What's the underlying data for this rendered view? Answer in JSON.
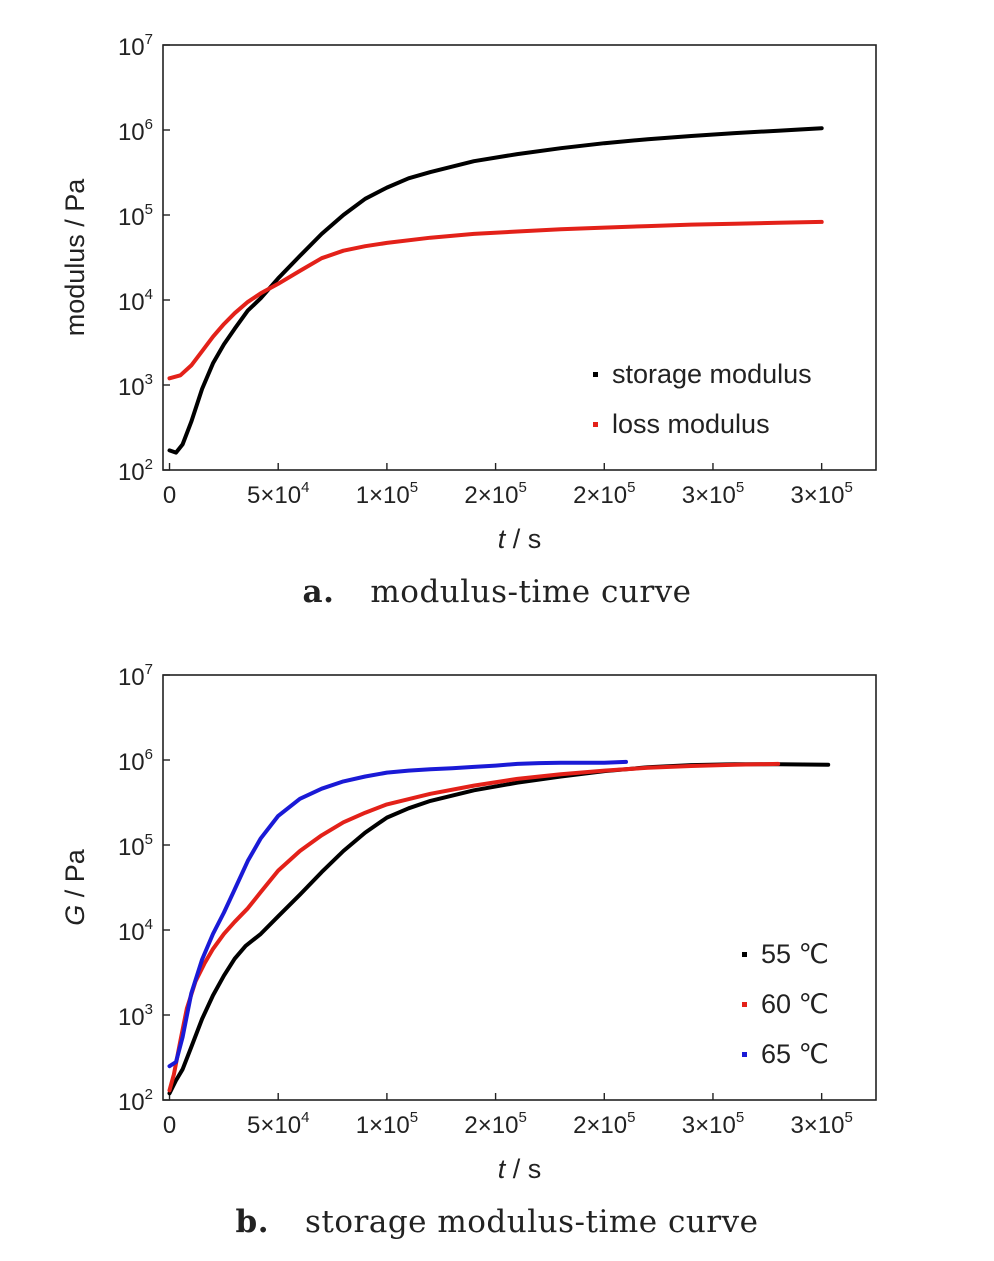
{
  "chart_data": [
    {
      "type": "line",
      "caption_label": "a.",
      "caption_text": "modulus-time curve",
      "xlabel_italic": "t",
      "xlabel_unit": "/ s",
      "ylabel": "modulus / Pa",
      "yscale": "log",
      "ylim": [
        100,
        10000000
      ],
      "xlim": [
        -3000,
        325000
      ],
      "grid": false,
      "legend_position": "bottom-right",
      "x_ticks": [
        {
          "value": 0,
          "mantissa": "0",
          "exp": ""
        },
        {
          "value": 50000,
          "mantissa": "5×10",
          "exp": "4"
        },
        {
          "value": 100000,
          "mantissa": "1×10",
          "exp": "5"
        },
        {
          "value": 150000,
          "mantissa": "2×10",
          "exp": "5"
        },
        {
          "value": 200000,
          "mantissa": "2×10",
          "exp": "5"
        },
        {
          "value": 250000,
          "mantissa": "3×10",
          "exp": "5"
        },
        {
          "value": 300000,
          "mantissa": "3×10",
          "exp": "5"
        }
      ],
      "y_ticks": [
        {
          "value": 100,
          "base": "10",
          "exp": "2"
        },
        {
          "value": 1000,
          "base": "10",
          "exp": "3"
        },
        {
          "value": 10000,
          "base": "10",
          "exp": "4"
        },
        {
          "value": 100000,
          "base": "10",
          "exp": "5"
        },
        {
          "value": 1000000,
          "base": "10",
          "exp": "6"
        },
        {
          "value": 10000000,
          "base": "10",
          "exp": "7"
        }
      ],
      "series": [
        {
          "name": "storage modulus",
          "color": "#000000",
          "x": [
            0,
            3000,
            6000,
            10000,
            15000,
            20000,
            25000,
            30000,
            36000,
            42000,
            50000,
            60000,
            70000,
            80000,
            90000,
            100000,
            110000,
            120000,
            140000,
            160000,
            180000,
            200000,
            220000,
            240000,
            260000,
            280000,
            300000
          ],
          "y": [
            170,
            160,
            200,
            370,
            900,
            1800,
            3000,
            4600,
            7500,
            10500,
            18000,
            33000,
            60000,
            100000,
            155000,
            210000,
            270000,
            320000,
            430000,
            520000,
            610000,
            700000,
            780000,
            850000,
            920000,
            980000,
            1050000
          ]
        },
        {
          "name": "loss modulus",
          "color": "#e32119",
          "x": [
            0,
            5000,
            10000,
            15000,
            20000,
            25000,
            30000,
            36000,
            42000,
            50000,
            60000,
            70000,
            80000,
            90000,
            100000,
            120000,
            140000,
            160000,
            180000,
            200000,
            220000,
            240000,
            260000,
            280000,
            300000
          ],
          "y": [
            1200,
            1300,
            1700,
            2500,
            3700,
            5200,
            7000,
            9500,
            12000,
            15500,
            22000,
            31000,
            38000,
            43000,
            47000,
            54000,
            60000,
            64000,
            68000,
            71000,
            74000,
            77000,
            79000,
            81000,
            83000
          ]
        }
      ]
    },
    {
      "type": "line",
      "caption_label": "b.",
      "caption_text": "storage modulus-time curve",
      "xlabel_italic": "t",
      "xlabel_unit": "/ s",
      "ylabel_italic": "G",
      "ylabel_unit": "/ Pa",
      "yscale": "log",
      "ylim": [
        100,
        10000000
      ],
      "xlim": [
        -3000,
        325000
      ],
      "grid": false,
      "legend_position": "bottom-right",
      "x_ticks": [
        {
          "value": 0,
          "mantissa": "0",
          "exp": ""
        },
        {
          "value": 50000,
          "mantissa": "5×10",
          "exp": "4"
        },
        {
          "value": 100000,
          "mantissa": "1×10",
          "exp": "5"
        },
        {
          "value": 150000,
          "mantissa": "2×10",
          "exp": "5"
        },
        {
          "value": 200000,
          "mantissa": "2×10",
          "exp": "5"
        },
        {
          "value": 250000,
          "mantissa": "3×10",
          "exp": "5"
        },
        {
          "value": 300000,
          "mantissa": "3×10",
          "exp": "5"
        }
      ],
      "y_ticks": [
        {
          "value": 100,
          "base": "10",
          "exp": "2"
        },
        {
          "value": 1000,
          "base": "10",
          "exp": "3"
        },
        {
          "value": 10000,
          "base": "10",
          "exp": "4"
        },
        {
          "value": 100000,
          "base": "10",
          "exp": "5"
        },
        {
          "value": 1000000,
          "base": "10",
          "exp": "6"
        },
        {
          "value": 10000000,
          "base": "10",
          "exp": "7"
        }
      ],
      "series": [
        {
          "name": "55 ℃",
          "color": "#000000",
          "x": [
            0,
            3000,
            6000,
            10000,
            15000,
            20000,
            25000,
            30000,
            35000,
            42000,
            50000,
            60000,
            70000,
            80000,
            90000,
            100000,
            110000,
            120000,
            140000,
            160000,
            180000,
            200000,
            220000,
            240000,
            260000,
            280000,
            303000
          ],
          "y": [
            120,
            170,
            230,
            420,
            900,
            1700,
            2900,
            4600,
            6500,
            9000,
            14500,
            26000,
            48000,
            85000,
            140000,
            210000,
            270000,
            330000,
            440000,
            540000,
            640000,
            740000,
            820000,
            870000,
            890000,
            890000,
            880000
          ]
        },
        {
          "name": "60 ℃",
          "color": "#e32119",
          "x": [
            0,
            2000,
            5000,
            8000,
            12000,
            16000,
            20000,
            25000,
            30000,
            36000,
            42000,
            50000,
            60000,
            70000,
            80000,
            90000,
            100000,
            120000,
            140000,
            160000,
            180000,
            200000,
            220000,
            240000,
            260000,
            280000
          ],
          "y": [
            130,
            200,
            500,
            1200,
            2500,
            4000,
            6000,
            9000,
            12500,
            18000,
            28000,
            50000,
            85000,
            130000,
            185000,
            240000,
            300000,
            400000,
            500000,
            600000,
            680000,
            750000,
            810000,
            850000,
            880000,
            900000
          ]
        },
        {
          "name": "65 ℃",
          "color": "#1a1ad6",
          "x": [
            0,
            3000,
            6000,
            10000,
            15000,
            20000,
            25000,
            30000,
            36000,
            42000,
            50000,
            60000,
            70000,
            80000,
            90000,
            100000,
            110000,
            120000,
            130000,
            140000,
            150000,
            160000,
            170000,
            180000,
            190000,
            200000,
            210000
          ],
          "y": [
            250,
            280,
            550,
            1800,
            4500,
            9000,
            16000,
            30000,
            65000,
            120000,
            220000,
            350000,
            460000,
            560000,
            640000,
            710000,
            750000,
            780000,
            800000,
            830000,
            860000,
            900000,
            920000,
            930000,
            930000,
            930000,
            950000
          ]
        }
      ]
    }
  ]
}
